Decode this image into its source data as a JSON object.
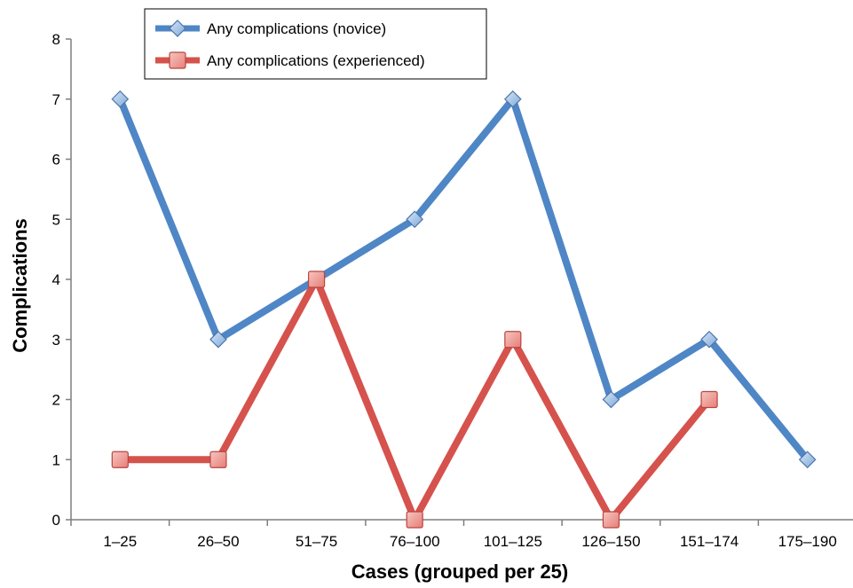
{
  "chart_data": {
    "type": "line",
    "title": "",
    "xlabel": "Cases (grouped per 25)",
    "ylabel": "Complications",
    "categories": [
      "1–25",
      "26–50",
      "51–75",
      "76–100",
      "101–125",
      "126–150",
      "151–174",
      "175–190"
    ],
    "ylim": [
      0,
      8
    ],
    "yticks": [
      0,
      1,
      2,
      3,
      4,
      5,
      6,
      7,
      8
    ],
    "grid": false,
    "legend_position": "top-left",
    "series": [
      {
        "name": "Any complications (novice)",
        "color": "#4f86c6",
        "marker": "diamond",
        "values": [
          7,
          3,
          4,
          5,
          7,
          2,
          3,
          1
        ]
      },
      {
        "name": "Any complications (experienced)",
        "color": "#d6524d",
        "marker": "square",
        "values": [
          1,
          1,
          4,
          0,
          3,
          0,
          2,
          null
        ]
      }
    ]
  }
}
